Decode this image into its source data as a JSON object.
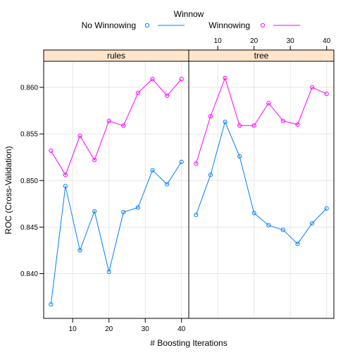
{
  "chart_data": {
    "type": "line",
    "legend": {
      "title": "Winnow",
      "position": "top",
      "entries": [
        {
          "label": "No Winnowing",
          "color": "#0080ff"
        },
        {
          "label": "Winnowing",
          "color": "#ff00ff"
        }
      ]
    },
    "xlabel": "# Boosting Iterations",
    "ylabel": "ROC (Cross-Validation)",
    "xlim": [
      2,
      42
    ],
    "ylim": [
      0.8352,
      0.8628
    ],
    "x_ticks": [
      10,
      20,
      30,
      40
    ],
    "y_ticks": [
      0.84,
      0.845,
      0.85,
      0.855,
      0.86
    ],
    "y_tick_labels": [
      "0.840",
      "0.845",
      "0.850",
      "0.855",
      "0.860"
    ],
    "grid": true,
    "x": [
      4,
      8,
      12,
      16,
      20,
      24,
      28,
      32,
      36,
      40
    ],
    "panels": [
      {
        "name": "rules",
        "series": [
          {
            "name": "No Winnowing",
            "color": "#0080ff",
            "values": [
              0.8367,
              0.8494,
              0.8425,
              0.8467,
              0.8402,
              0.8466,
              0.8471,
              0.8511,
              0.8496,
              0.852
            ]
          },
          {
            "name": "Winnowing",
            "color": "#ff00ff",
            "values": [
              0.8532,
              0.8506,
              0.8548,
              0.8522,
              0.8564,
              0.8559,
              0.8594,
              0.8609,
              0.8591,
              0.8609
            ]
          }
        ]
      },
      {
        "name": "tree",
        "series": [
          {
            "name": "No Winnowing",
            "color": "#0080ff",
            "values": [
              0.8463,
              0.8506,
              0.8563,
              0.8526,
              0.8465,
              0.8452,
              0.8447,
              0.8432,
              0.8454,
              0.847
            ]
          },
          {
            "name": "Winnowing",
            "color": "#ff00ff",
            "values": [
              0.8518,
              0.8569,
              0.861,
              0.8559,
              0.8559,
              0.8583,
              0.8564,
              0.856,
              0.86,
              0.8593
            ]
          }
        ]
      }
    ]
  }
}
